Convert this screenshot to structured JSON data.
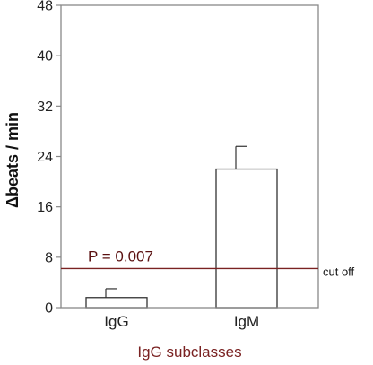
{
  "colors": {
    "axis": "#888888",
    "bar_fill": "#ffffff",
    "bar_stroke": "#333333",
    "error_bar": "#333333",
    "cutoff_line": "#7a2222",
    "annotation_text": "#5a1010",
    "xlabel_text": "#7a2222"
  },
  "chart_data": {
    "type": "bar",
    "title": "",
    "xlabel": "IgG subclasses",
    "ylabel": "Δbeats / min",
    "ylim": [
      0,
      48
    ],
    "yticks": [
      0,
      8,
      16,
      24,
      32,
      40,
      48
    ],
    "ytick_labels": [
      "0",
      "8",
      "16",
      "24",
      "32",
      "40",
      "48"
    ],
    "categories": [
      "IgG",
      "IgM"
    ],
    "values": [
      1.6,
      22
    ],
    "errors": [
      1.4,
      3.6
    ],
    "cutoff": {
      "value": 6.2,
      "label": "cut off"
    },
    "annotation": {
      "text": "P = 0.007"
    },
    "grid": false,
    "legend": "none"
  }
}
